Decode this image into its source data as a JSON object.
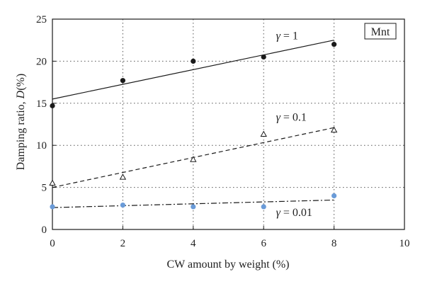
{
  "chart_data": {
    "type": "scatter",
    "title": "",
    "tag": "Mnt",
    "xlabel": "CW amount by weight (%)",
    "ylabel_prefix": "Damping ratio, ",
    "ylabel_symbol": "D",
    "ylabel_suffix": "(%)",
    "xlim": [
      0,
      10
    ],
    "ylim": [
      0,
      25
    ],
    "xticks": [
      0,
      2,
      4,
      6,
      8,
      10
    ],
    "yticks": [
      0,
      5,
      10,
      15,
      20,
      25
    ],
    "grid": "dotted",
    "series": [
      {
        "label_symbol": "γ",
        "label_value": " = 1",
        "marker": "filled-circle",
        "color": "#1a1a1a",
        "line_style": "solid",
        "x": [
          0,
          2,
          4,
          6,
          8
        ],
        "y": [
          14.7,
          17.7,
          20.0,
          20.5,
          22.0
        ],
        "fit": [
          [
            0,
            15.5
          ],
          [
            8,
            22.5
          ]
        ]
      },
      {
        "label_symbol": "γ",
        "label_value": " = 0.1",
        "marker": "open-triangle",
        "color": "#1a1a1a",
        "line_style": "dashed",
        "x": [
          0,
          2,
          4,
          6,
          8
        ],
        "y": [
          5.5,
          6.2,
          8.3,
          11.3,
          11.8
        ],
        "fit": [
          [
            0,
            5.0
          ],
          [
            8,
            12.1
          ]
        ]
      },
      {
        "label_symbol": "γ",
        "label_value": " = 0.01",
        "marker": "filled-circle",
        "color": "#6a9bd8",
        "line_style": "dashdot",
        "x": [
          0,
          2,
          4,
          6,
          8
        ],
        "y": [
          2.7,
          2.9,
          2.7,
          2.7,
          4.0
        ],
        "fit": [
          [
            0,
            2.6
          ],
          [
            8,
            3.5
          ]
        ]
      }
    ]
  }
}
